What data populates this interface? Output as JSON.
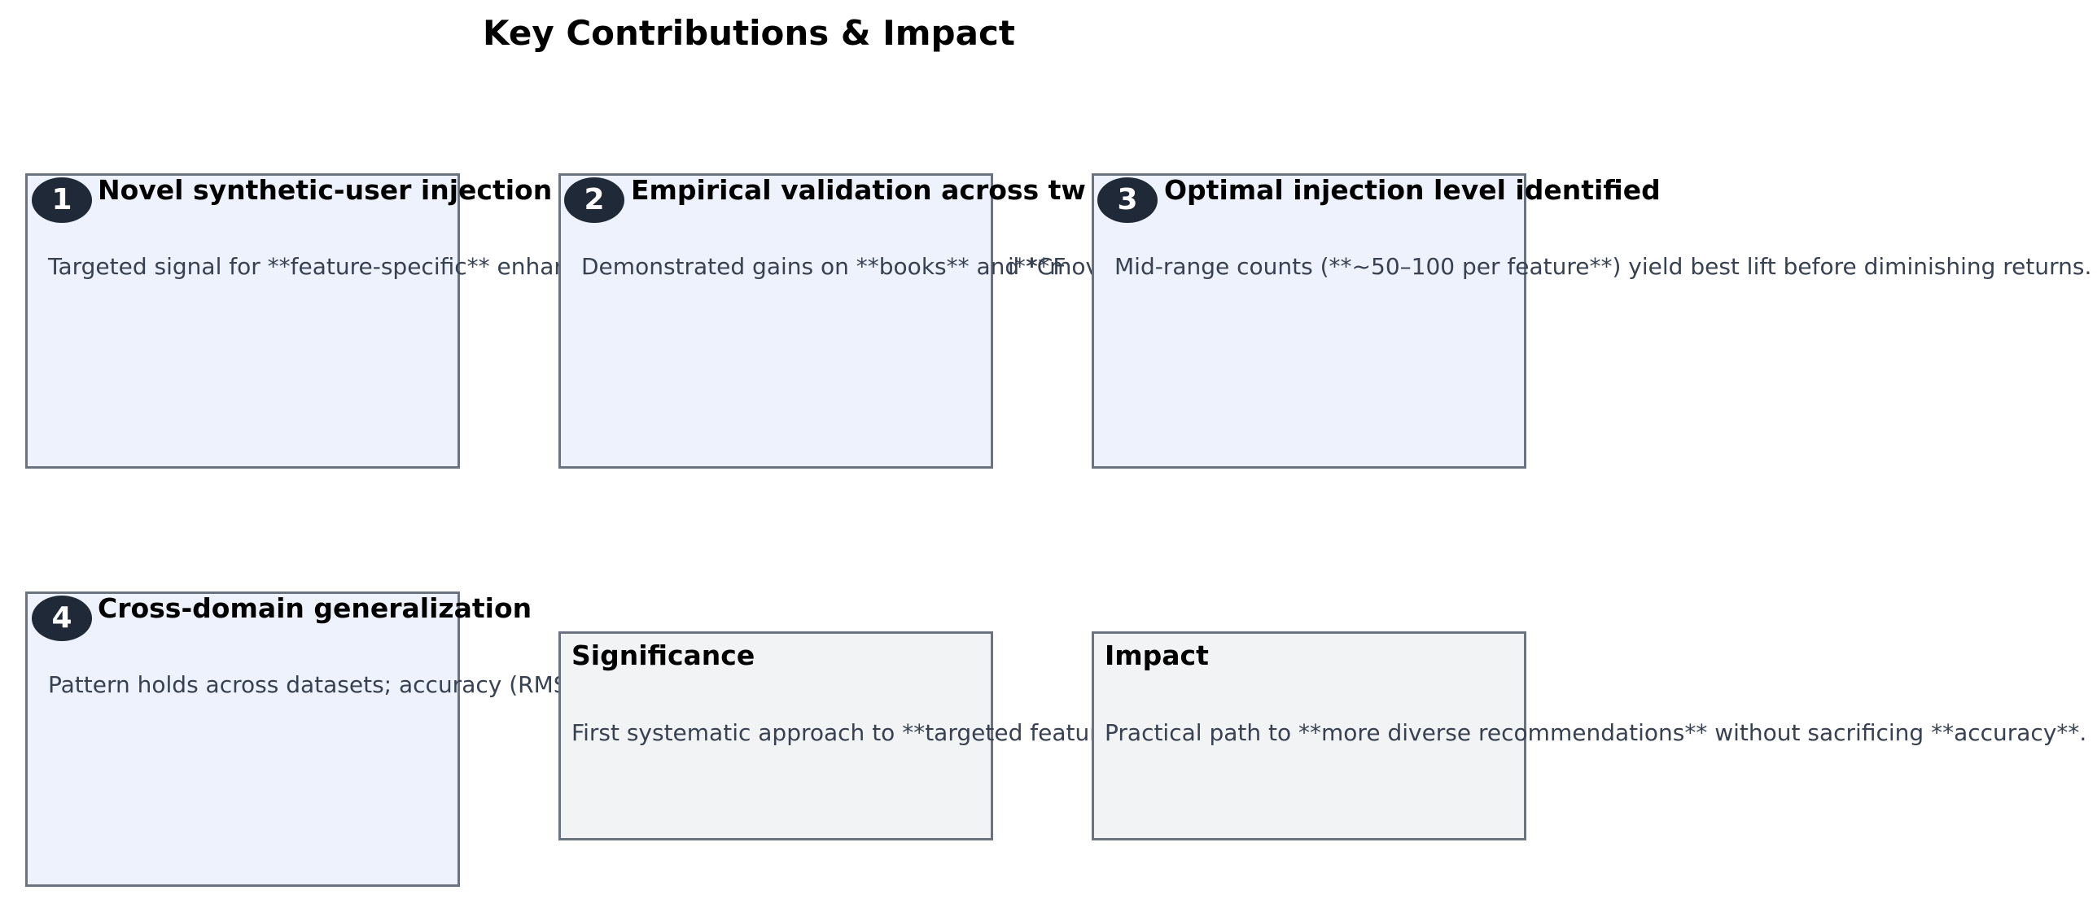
{
  "title": "Key Contributions & Impact",
  "colors": {
    "card_fill": "#edf2fd",
    "summary_fill": "#f2f3f5",
    "border": "#6b7280",
    "badge": "#1f2937",
    "body_text": "#374151"
  },
  "contributions": [
    {
      "number": "1",
      "heading": "Novel synthetic-user injection",
      "body": "Targeted signal for **feature-specific** enhar"
    },
    {
      "number": "2",
      "heading": "Empirical validation across tw",
      "body": "Demonstrated gains on **books** and **mov"
    },
    {
      "number": "3",
      "heading": "Optimal injection level identified",
      "body": "Mid-range counts (**~50–100 per feature**) yield best lift before diminishing returns."
    },
    {
      "number": "4",
      "heading": "Cross-domain generalization",
      "body": "Pattern holds across datasets; accuracy (RMS"
    }
  ],
  "significance": {
    "heading": "Significance",
    "body": "First systematic approach to **targeted featur"
  },
  "impact": {
    "heading": "Impact",
    "body": "Practical path to **more diverse recommendations** without sacrificing **accuracy**."
  },
  "overflow_fragments": {
    "card2_tail": "i**CF",
    "significance_tail": "mmendations** without sacrificing **accuracy**."
  }
}
